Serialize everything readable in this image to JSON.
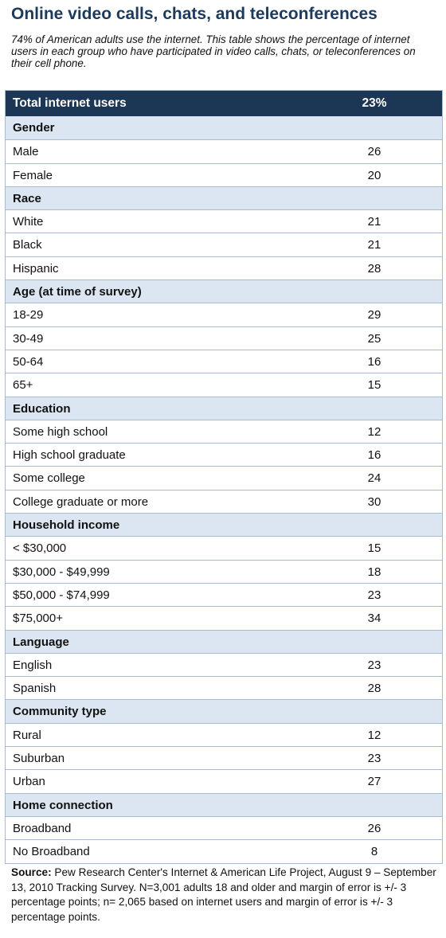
{
  "title": "Online video calls, chats, and teleconferences",
  "subtitle": "74% of American adults use the internet. This table shows the percentage of internet users in each group who have participated in video calls, chats, or teleconferences on their cell phone.",
  "total": {
    "label": "Total internet users",
    "value": "23%"
  },
  "sections": [
    {
      "label": "Gender",
      "rows": [
        {
          "label": "Male",
          "value": "26"
        },
        {
          "label": "Female",
          "value": "20"
        }
      ]
    },
    {
      "label": "Race",
      "rows": [
        {
          "label": "White",
          "value": "21"
        },
        {
          "label": "Black",
          "value": "21"
        },
        {
          "label": "Hispanic",
          "value": "28"
        }
      ]
    },
    {
      "label": "Age (at time of survey)",
      "rows": [
        {
          "label": "18-29",
          "value": "29"
        },
        {
          "label": "30-49",
          "value": "25"
        },
        {
          "label": "50-64",
          "value": "16"
        },
        {
          "label": "65+",
          "value": "15"
        }
      ]
    },
    {
      "label": "Education",
      "rows": [
        {
          "label": "Some high school",
          "value": "12"
        },
        {
          "label": "High school graduate",
          "value": "16"
        },
        {
          "label": "Some college",
          "value": "24"
        },
        {
          "label": "College graduate or more",
          "value": "30"
        }
      ]
    },
    {
      "label": "Household income",
      "rows": [
        {
          "label": "< $30,000",
          "value": "15"
        },
        {
          "label": "$30,000 - $49,999",
          "value": "18"
        },
        {
          "label": "$50,000 - $74,999",
          "value": "23"
        },
        {
          "label": "$75,000+",
          "value": "34"
        }
      ]
    },
    {
      "label": "Language",
      "rows": [
        {
          "label": "English",
          "value": "23"
        },
        {
          "label": "Spanish",
          "value": "28"
        }
      ]
    },
    {
      "label": "Community type",
      "rows": [
        {
          "label": "Rural",
          "value": "12"
        },
        {
          "label": "Suburban",
          "value": "23"
        },
        {
          "label": "Urban",
          "value": "27"
        }
      ]
    },
    {
      "label": "Home connection",
      "rows": [
        {
          "label": "Broadband",
          "value": "26"
        },
        {
          "label": "No Broadband",
          "value": "8"
        }
      ]
    }
  ],
  "source": {
    "label": "Source:",
    "text": "Pew Research Center's Internet & American Life Project, August 9 – September 13, 2010 Tracking Survey. N=3,001 adults 18 and older and margin of error is +/- 3 percentage points; n= 2,065 based on internet users and margin of error is +/- 3 percentage points."
  },
  "colors": {
    "header_dark": "#1c3656",
    "section_bg": "#dbe6f2",
    "border": "#a7bccf",
    "title": "#1b3a5c"
  }
}
